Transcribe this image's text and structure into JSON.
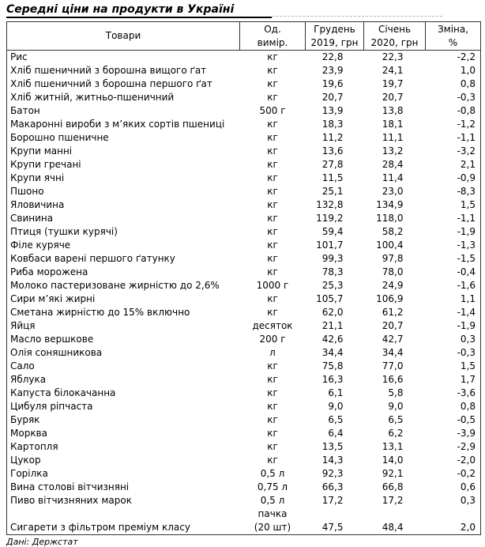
{
  "title": "Середні ціни на продукти в Україні",
  "footer": {
    "text": "Дані: Держстат"
  },
  "colors": {
    "background": "#ffffff",
    "text": "#000000",
    "table_border": "#333333",
    "title_underline": "#000000",
    "page_break_line": "#b3b3b3"
  },
  "table": {
    "columns": [
      "Товари",
      "Од.\nвимір.",
      "Грудень\n2019, грн",
      "Січень\n2020, грн",
      "Зміна,\n%"
    ],
    "rows": [
      {
        "name": "Рис",
        "unit": "кг",
        "dec": "22,8",
        "jan": "22,3",
        "change": "-2,2"
      },
      {
        "name": "Хліб пшеничний з борошна вищого ґат",
        "unit": "кг",
        "dec": "23,9",
        "jan": "24,1",
        "change": "1,0"
      },
      {
        "name": "Хліб пшеничний з борошна першого ґат",
        "unit": "кг",
        "dec": "19,6",
        "jan": "19,7",
        "change": "0,8"
      },
      {
        "name": "Хліб житній, житньо-пшеничний",
        "unit": "кг",
        "dec": "20,7",
        "jan": "20,7",
        "change": "-0,3"
      },
      {
        "name": "Батон",
        "unit": "500 г",
        "dec": "13,9",
        "jan": "13,8",
        "change": "-0,8"
      },
      {
        "name": "Макаронні вироби з м’яких сортів пшениці",
        "unit": "кг",
        "dec": "18,3",
        "jan": "18,1",
        "change": "-1,2"
      },
      {
        "name": "Борошно пшеничне",
        "unit": "кг",
        "dec": "11,2",
        "jan": "11,1",
        "change": "-1,1"
      },
      {
        "name": "Крупи манні",
        "unit": "кг",
        "dec": "13,6",
        "jan": "13,2",
        "change": "-3,2"
      },
      {
        "name": "Крупи гречані",
        "unit": "кг",
        "dec": "27,8",
        "jan": "28,4",
        "change": "2,1"
      },
      {
        "name": "Крупи ячні",
        "unit": "кг",
        "dec": "11,5",
        "jan": "11,4",
        "change": "-0,9"
      },
      {
        "name": "Пшоно",
        "unit": "кг",
        "dec": "25,1",
        "jan": "23,0",
        "change": "-8,3"
      },
      {
        "name": "Яловичина",
        "unit": "кг",
        "dec": "132,8",
        "jan": "134,9",
        "change": "1,5"
      },
      {
        "name": "Свинина",
        "unit": "кг",
        "dec": "119,2",
        "jan": "118,0",
        "change": "-1,1"
      },
      {
        "name": "Птиця (тушки курячі)",
        "unit": "кг",
        "dec": "59,4",
        "jan": "58,2",
        "change": "-1,9"
      },
      {
        "name": "Філе куряче",
        "unit": "кг",
        "dec": "101,7",
        "jan": "100,4",
        "change": "-1,3"
      },
      {
        "name": "Ковбаси варені першого ґатунку",
        "unit": "кг",
        "dec": "99,3",
        "jan": "97,8",
        "change": "-1,5"
      },
      {
        "name": "Риба морожена",
        "unit": "кг",
        "dec": "78,3",
        "jan": "78,0",
        "change": "-0,4"
      },
      {
        "name": "Молоко пастеризоване жирністю до 2,6%",
        "unit": "1000 г",
        "dec": "25,3",
        "jan": "24,9",
        "change": "-1,6"
      },
      {
        "name": "Сири м’які жирні",
        "unit": "кг",
        "dec": "105,7",
        "jan": "106,9",
        "change": "1,1"
      },
      {
        "name": "Сметана жирністю до 15% включно",
        "unit": "кг",
        "dec": "62,0",
        "jan": "61,2",
        "change": "-1,4"
      },
      {
        "name": "Яйця",
        "unit": "десяток",
        "dec": "21,1",
        "jan": "20,7",
        "change": "-1,9"
      },
      {
        "name": "Масло вершкове",
        "unit": "200 г",
        "dec": "42,6",
        "jan": "42,7",
        "change": "0,3"
      },
      {
        "name": "Олія соняшникова",
        "unit": "л",
        "dec": "34,4",
        "jan": "34,4",
        "change": "-0,3"
      },
      {
        "name": "Сало",
        "unit": "кг",
        "dec": "75,8",
        "jan": "77,0",
        "change": "1,5"
      },
      {
        "name": "Яблука",
        "unit": "кг",
        "dec": "16,3",
        "jan": "16,6",
        "change": "1,7"
      },
      {
        "name": "Капуста білокачанна",
        "unit": "кг",
        "dec": "6,1",
        "jan": "5,8",
        "change": "-3,6"
      },
      {
        "name": "Цибуля ріпчаста",
        "unit": "кг",
        "dec": "9,0",
        "jan": "9,0",
        "change": "0,8"
      },
      {
        "name": "Буряк",
        "unit": "кг",
        "dec": "6,5",
        "jan": "6,5",
        "change": "-0,5"
      },
      {
        "name": "Морква",
        "unit": "кг",
        "dec": "6,4",
        "jan": "6,2",
        "change": "-3,9"
      },
      {
        "name": "Картопля",
        "unit": "кг",
        "dec": "13,5",
        "jan": "13,1",
        "change": "-2,9"
      },
      {
        "name": "Цукор",
        "unit": "кг",
        "dec": "14,3",
        "jan": "14,0",
        "change": "-2,0"
      },
      {
        "name": "Горілка",
        "unit": "0,5 л",
        "dec": "92,3",
        "jan": "92,1",
        "change": "-0,2"
      },
      {
        "name": "Вина столові вітчизняні",
        "unit": "0,75 л",
        "dec": "66,3",
        "jan": "66,8",
        "change": "0,6"
      },
      {
        "name": "Пиво вітчизняних марок",
        "unit": "0,5 л",
        "dec": "17,2",
        "jan": "17,2",
        "change": "0,3"
      },
      {
        "name": "Сигарети з фільтром преміум класу",
        "unit": "пачка\n(20 шт)",
        "dec": "47,5",
        "jan": "48,4",
        "change": "2,0"
      }
    ]
  }
}
